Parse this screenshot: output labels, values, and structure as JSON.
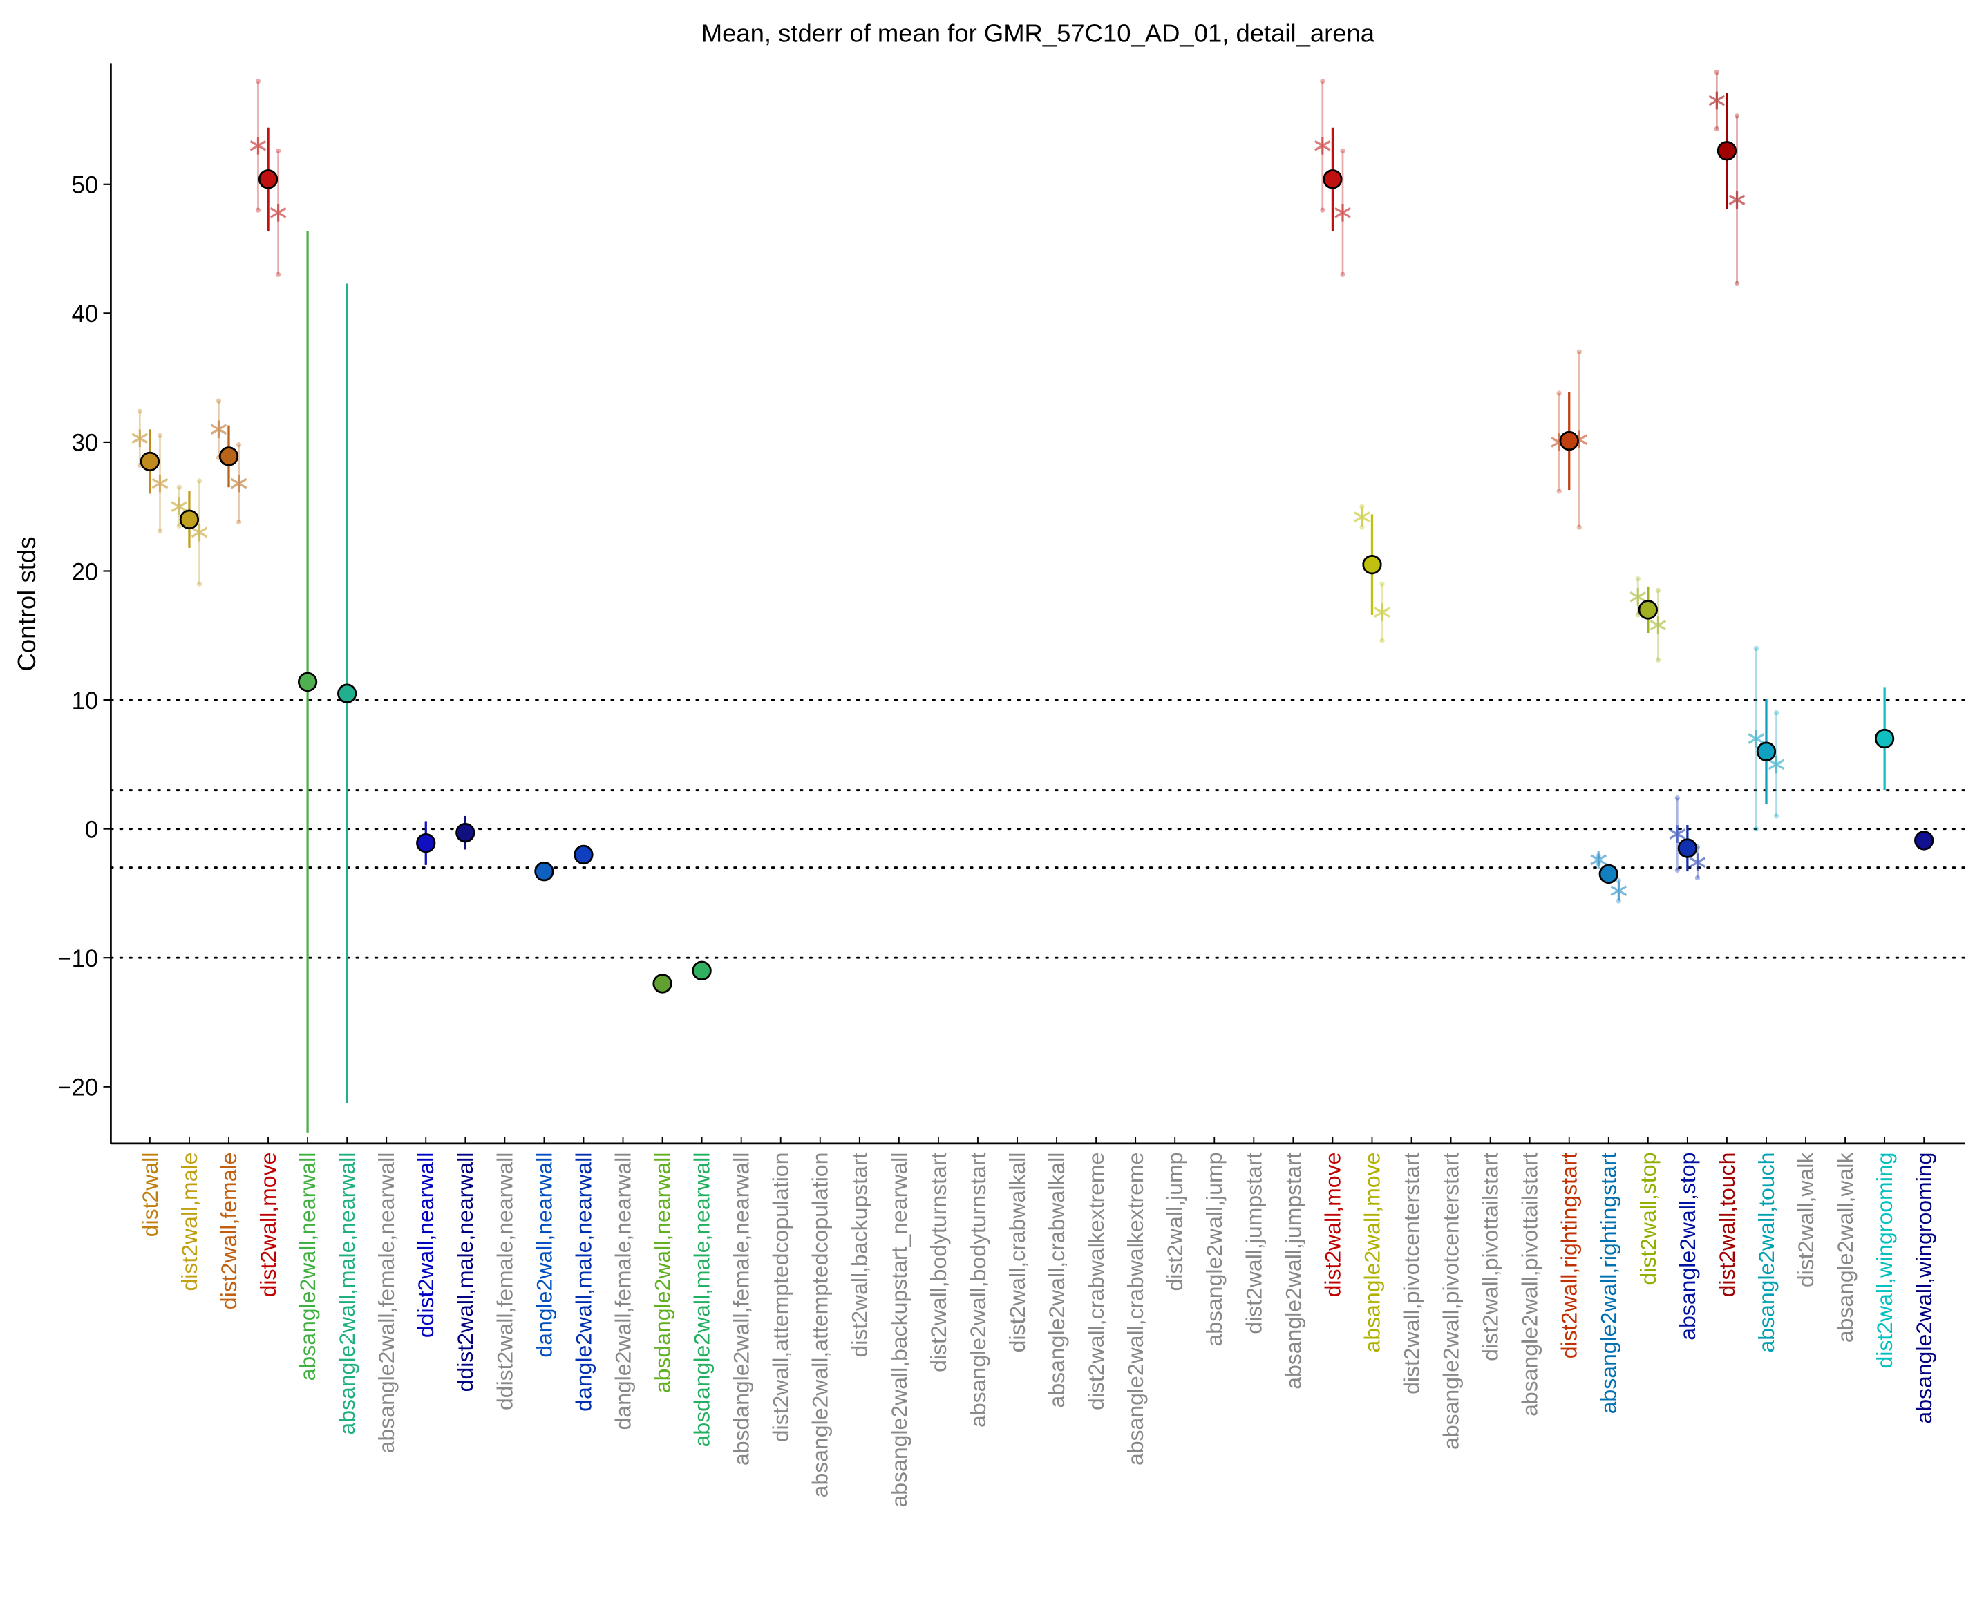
{
  "chart_data": {
    "type": "errorbar",
    "title": "Mean, stderr of mean for GMR_57C10_AD_01, detail_arena",
    "y_label": "Control stds",
    "categories": [
      "dist2wall",
      "dist2wall,male",
      "dist2wall,female",
      "dist2wall,move",
      "absangle2wall,nearwall",
      "absangle2wall,male,nearwall",
      "absangle2wall,female,nearwall",
      "ddist2wall,nearwall",
      "ddist2wall,male,nearwall",
      "ddist2wall,female,nearwall",
      "dangle2wall,nearwall",
      "dangle2wall,male,nearwall",
      "dangle2wall,female,nearwall",
      "absdangle2wall,nearwall",
      "absdangle2wall,male,nearwall",
      "absdangle2wall,female,nearwall",
      "dist2wall,attemptedcopulation",
      "absangle2wall,attemptedcopulation",
      "dist2wall,backupstart",
      "absangle2wall,backupstart_nearwall",
      "dist2wall,bodyturnstart",
      "absangle2wall,bodyturnstart",
      "dist2wall,crabwalkall",
      "absangle2wall,crabwalkall",
      "dist2wall,crabwalkextreme",
      "absangle2wall,crabwalkextreme",
      "dist2wall,jump",
      "absangle2wall,jump",
      "dist2wall,jumpstart",
      "absangle2wall,jumpstart",
      "dist2wall,move",
      "absangle2wall,move",
      "dist2wall,pivotcenterstart",
      "absangle2wall,pivotcenterstart",
      "dist2wall,pivottailstart",
      "absangle2wall,pivottailstart",
      "dist2wall,rightingstart",
      "absangle2wall,rightingstart",
      "dist2wall,stop",
      "absangle2wall,stop",
      "dist2wall,touch",
      "absangle2wall,touch",
      "dist2wall,walk",
      "absangle2wall,walk",
      "dist2wall,wingrooming",
      "absangle2wall,wingrooming"
    ],
    "values": [
      28.5,
      24,
      28.9,
      50.4,
      11.4,
      10.5,
      null,
      -1.1,
      -0.3,
      null,
      -3.3,
      -2,
      null,
      -12,
      -11,
      null,
      null,
      null,
      null,
      null,
      null,
      null,
      null,
      null,
      null,
      null,
      null,
      null,
      null,
      null,
      50.4,
      20.5,
      null,
      null,
      null,
      null,
      30.1,
      -3.5,
      17,
      -1.5,
      52.6,
      6,
      null,
      null,
      7,
      -0.9
    ],
    "errors": [
      2.5,
      2.2,
      2.4,
      4,
      35,
      31.8,
      null,
      1.7,
      1.3,
      null,
      0,
      0,
      null,
      0,
      0,
      null,
      null,
      null,
      null,
      null,
      null,
      null,
      null,
      null,
      null,
      null,
      null,
      null,
      null,
      null,
      4,
      3.9,
      null,
      null,
      null,
      null,
      3.8,
      0.3,
      1.8,
      1.8,
      4.5,
      4.1,
      null,
      null,
      4,
      0.3
    ],
    "male": {
      "values": [
        30.3,
        25,
        31,
        53,
        null,
        null,
        null,
        null,
        null,
        null,
        null,
        null,
        null,
        null,
        null,
        null,
        null,
        null,
        null,
        null,
        null,
        null,
        null,
        null,
        null,
        null,
        null,
        null,
        null,
        null,
        53,
        24.2,
        null,
        null,
        null,
        null,
        30,
        -2.4,
        18,
        -0.4,
        56.5,
        7,
        null,
        null,
        null,
        null
      ],
      "errors": [
        2.1,
        1.5,
        2.2,
        5,
        null,
        null,
        null,
        null,
        null,
        null,
        null,
        null,
        null,
        null,
        null,
        null,
        null,
        null,
        null,
        null,
        null,
        null,
        null,
        null,
        null,
        null,
        null,
        null,
        null,
        null,
        5,
        0.8,
        null,
        null,
        null,
        null,
        3.8,
        0.3,
        1.4,
        2.8,
        2.2,
        7,
        null,
        null,
        null,
        null
      ]
    },
    "female": {
      "values": [
        26.8,
        23,
        26.8,
        47.8,
        null,
        null,
        null,
        null,
        null,
        null,
        null,
        null,
        null,
        null,
        null,
        null,
        null,
        null,
        null,
        null,
        null,
        null,
        null,
        null,
        null,
        null,
        null,
        null,
        null,
        null,
        47.8,
        16.8,
        null,
        null,
        null,
        null,
        30.2,
        -4.8,
        15.8,
        -2.6,
        48.8,
        5,
        null,
        null,
        null,
        null
      ],
      "errors": [
        3.7,
        4,
        3,
        4.8,
        null,
        null,
        null,
        null,
        null,
        null,
        null,
        null,
        null,
        null,
        null,
        null,
        null,
        null,
        null,
        null,
        null,
        null,
        null,
        null,
        null,
        null,
        null,
        null,
        null,
        null,
        4.8,
        2.2,
        null,
        null,
        null,
        null,
        6.8,
        0.8,
        2.7,
        1.2,
        6.5,
        4,
        null,
        null,
        null,
        null
      ]
    },
    "colors": [
      "#c08a1e",
      "#c0a020",
      "#b8651a",
      "#c01010",
      "#50b050",
      "#20b090",
      null,
      "#1010c0",
      "#101080",
      null,
      "#1060c0",
      "#1040c0",
      null,
      "#60a030",
      "#30b060",
      null,
      null,
      null,
      null,
      null,
      null,
      null,
      null,
      null,
      null,
      null,
      null,
      null,
      null,
      null,
      "#c01010",
      "#c0c010",
      null,
      null,
      null,
      null,
      "#c04010",
      "#1080c0",
      "#a0b020",
      "#1030b0",
      "#a00000",
      "#10a0c0",
      null,
      null,
      "#10c0c0",
      "#101090"
    ],
    "label_colors": [
      "#c08010",
      "#c0a010",
      "#c06010",
      "#c00000",
      "#40b040",
      "#20b080",
      "#888888",
      "#0000c0",
      "#000080",
      "#888888",
      "#0050c0",
      "#0030b0",
      "#888888",
      "#60b020",
      "#20b060",
      "#888888",
      "#888888",
      "#888888",
      "#888888",
      "#888888",
      "#888888",
      "#888888",
      "#888888",
      "#888888",
      "#888888",
      "#888888",
      "#888888",
      "#888888",
      "#888888",
      "#888888",
      "#c00000",
      "#b0b000",
      "#888888",
      "#888888",
      "#888888",
      "#888888",
      "#c03000",
      "#0070b0",
      "#90b000",
      "#0010a0",
      "#a00000",
      "#00a0b0",
      "#888888",
      "#888888",
      "#00c0c0",
      "#000080"
    ],
    "ylim": [
      -24.4,
      59.4
    ],
    "yticks": [
      {
        "value": -20,
        "label": "−20"
      },
      {
        "value": -10,
        "label": "−10"
      },
      0,
      10,
      20,
      30,
      40,
      50
    ],
    "reference_lines": [
      -10,
      -3,
      0,
      3,
      10
    ]
  }
}
